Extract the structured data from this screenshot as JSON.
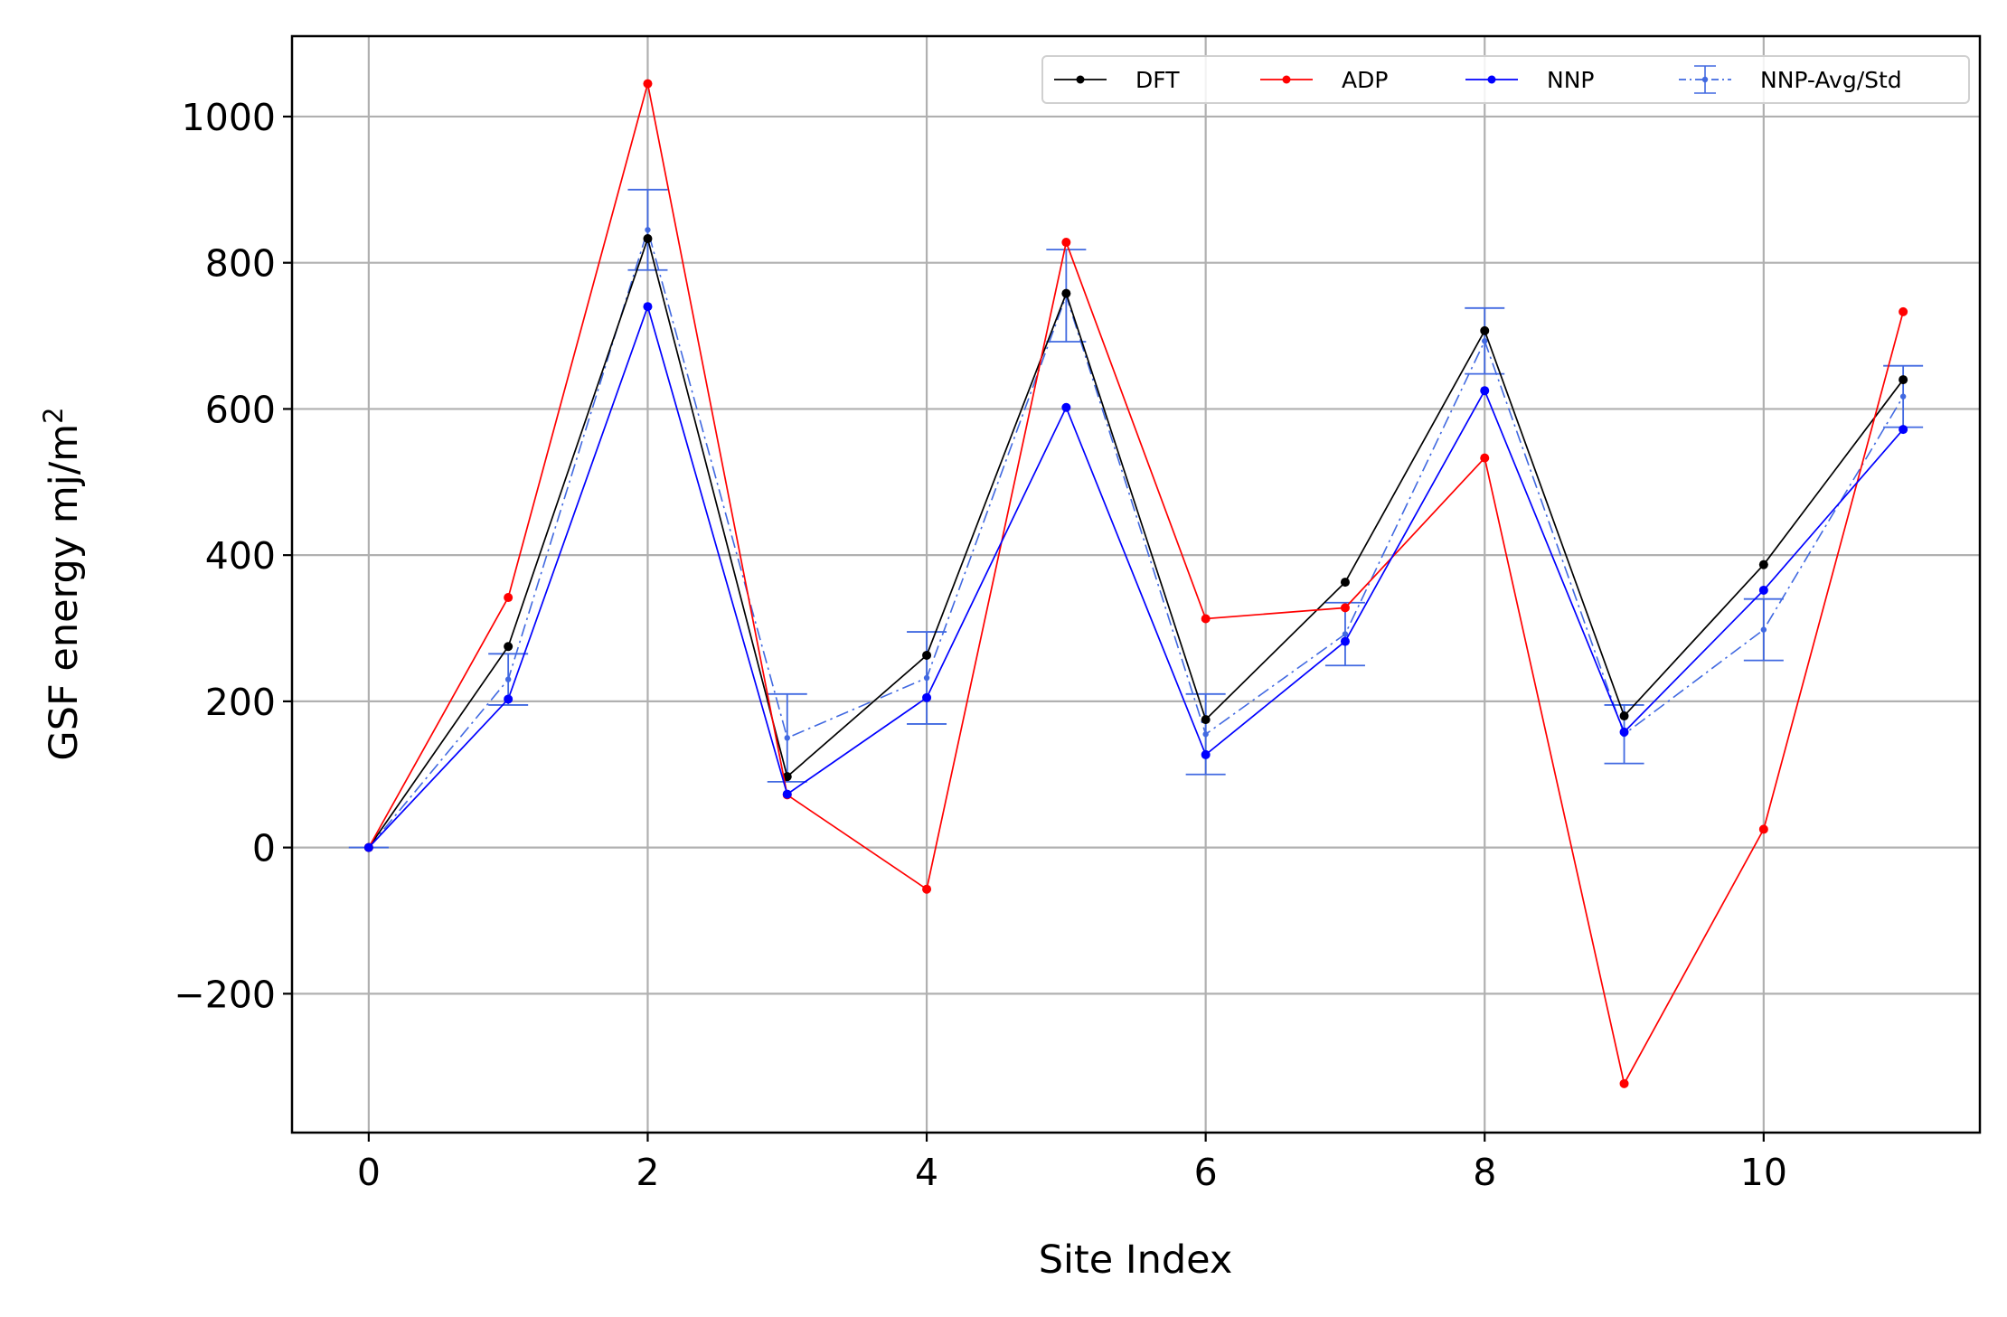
{
  "chart_data": {
    "type": "line",
    "title": "",
    "xlabel": "Site Index",
    "ylabel": "GSF energy mj/m",
    "ylabel_superscript": "2",
    "xlim": [
      -0.55,
      11.55
    ],
    "ylim": [
      -390,
      1110
    ],
    "xticks": [
      0,
      2,
      4,
      6,
      8,
      10
    ],
    "yticks": [
      -200,
      0,
      200,
      400,
      600,
      800,
      1000
    ],
    "ytick_labels": [
      "−200",
      "0",
      "200",
      "400",
      "600",
      "800",
      "1000"
    ],
    "grid": true,
    "legend": {
      "position": "top-right",
      "columns": 4
    },
    "x": [
      0,
      1,
      2,
      3,
      4,
      5,
      6,
      7,
      8,
      9,
      10,
      11
    ],
    "series": [
      {
        "name": "DFT",
        "color": "#000000",
        "style": "solid",
        "values": [
          0,
          275,
          833,
          97,
          263,
          758,
          175,
          363,
          707,
          180,
          387,
          640
        ]
      },
      {
        "name": "ADP",
        "color": "#ff0000",
        "style": "solid",
        "values": [
          0,
          342,
          1045,
          72,
          -57,
          828,
          313,
          328,
          533,
          -323,
          25,
          733
        ]
      },
      {
        "name": "NNP",
        "color": "#0000ff",
        "style": "solid",
        "values": [
          0,
          203,
          740,
          73,
          205,
          602,
          127,
          282,
          625,
          158,
          352,
          572
        ]
      },
      {
        "name": "NNP-Avg/Std",
        "color": "#4169e1",
        "style": "dashdot",
        "errorbars": true,
        "values": [
          0,
          230,
          845,
          150,
          232,
          755,
          155,
          292,
          693,
          155,
          298,
          617
        ],
        "errors": [
          0,
          35,
          55,
          60,
          63,
          63,
          55,
          43,
          45,
          40,
          42,
          42
        ]
      }
    ]
  }
}
